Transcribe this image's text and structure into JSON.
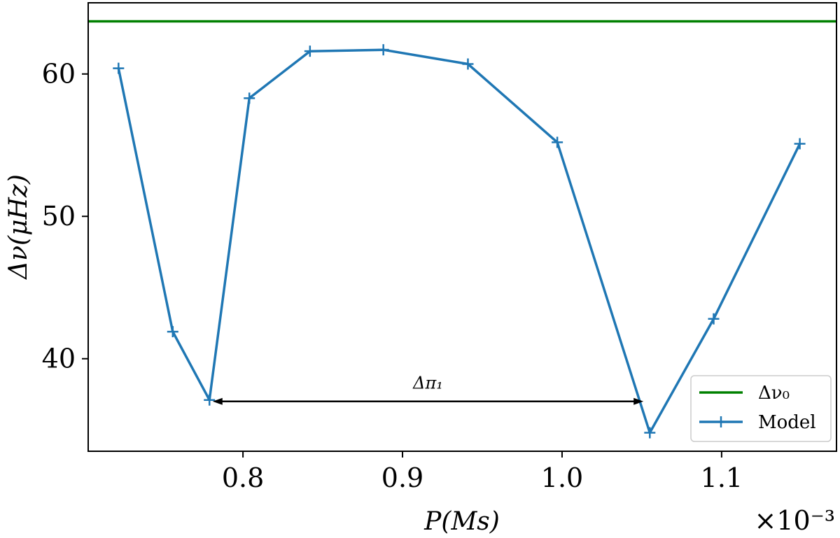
{
  "chart_data": {
    "type": "line",
    "xlabel": "P(Ms)",
    "ylabel": "Δν(μHz)",
    "x_multiplier": "×10⁻³",
    "xlim": [
      0.703,
      1.172
    ],
    "ylim": [
      33.5,
      65.0
    ],
    "xticks": [
      0.8,
      0.9,
      1.0,
      1.1
    ],
    "xtick_labels": [
      "0.8",
      "0.9",
      "1.0",
      "1.1"
    ],
    "yticks": [
      40,
      50,
      60
    ],
    "ytick_labels": [
      "40",
      "50",
      "60"
    ],
    "grid": false,
    "legend_position": "bottom-right",
    "series": [
      {
        "name": "Δν₀",
        "color": "#008000",
        "marker": "none",
        "x": [
          0.703,
          1.172
        ],
        "y": [
          63.7,
          63.7
        ]
      },
      {
        "name": "Model",
        "color": "#1f77b4",
        "marker": "plus",
        "x": [
          0.722,
          0.756,
          0.779,
          0.804,
          0.842,
          0.888,
          0.941,
          0.997,
          1.055,
          1.095,
          1.149
        ],
        "y": [
          60.4,
          41.9,
          37.1,
          58.3,
          61.6,
          61.7,
          60.7,
          55.2,
          34.8,
          42.8,
          55.1
        ]
      }
    ],
    "annotations": [
      {
        "type": "double-arrow",
        "text": "Δπ₁",
        "x1": 0.781,
        "x2": 1.051,
        "y": 37.0,
        "label_y": 38.3
      }
    ]
  }
}
